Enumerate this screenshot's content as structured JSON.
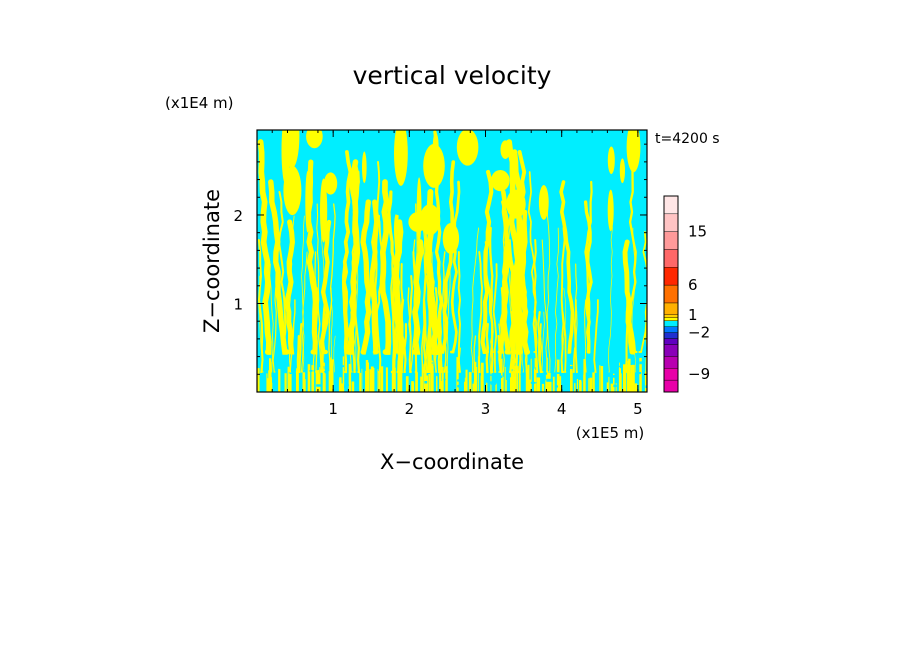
{
  "chart_data": {
    "type": "heatmap",
    "title": "vertical velocity",
    "xlabel": "X−coordinate",
    "ylabel": "Z−coordinate",
    "x_unit": "(x1E5 m)",
    "y_unit": "(x1E4 m)",
    "time_label": "t=4200 s",
    "xlim": [
      0,
      5.12
    ],
    "ylim": [
      0,
      2.96
    ],
    "x_ticks": [
      1,
      2,
      3,
      4,
      5
    ],
    "x_tick_labels": [
      "1",
      "2",
      "3",
      "4",
      "5"
    ],
    "y_ticks": [
      1,
      2
    ],
    "y_tick_labels": [
      "1",
      "2"
    ],
    "field_colors": {
      "upward": "#ffff00",
      "downward": "#00eeff"
    },
    "colorbar": {
      "labels": [
        {
          "value": 15,
          "text": "15"
        },
        {
          "value": 6,
          "text": "6"
        },
        {
          "value": 1,
          "text": "1"
        },
        {
          "value": -2,
          "text": "−2"
        },
        {
          "value": -9,
          "text": "−9"
        }
      ],
      "levels": [
        {
          "value": -12,
          "color": "#e800a8"
        },
        {
          "value": -10,
          "color": "#e800a8"
        },
        {
          "value": -8,
          "color": "#b800b0"
        },
        {
          "value": -6,
          "color": "#8a00b8"
        },
        {
          "value": -4,
          "color": "#6000c0"
        },
        {
          "value": -3,
          "color": "#2030d0"
        },
        {
          "value": -2,
          "color": "#0078ff"
        },
        {
          "value": -1,
          "color": "#00eeff"
        },
        {
          "value": 0,
          "color": "#ffff00"
        },
        {
          "value": 0.5,
          "color": "#ffd000"
        },
        {
          "value": 1,
          "color": "#ffb000"
        },
        {
          "value": 3,
          "color": "#ff7000"
        },
        {
          "value": 6,
          "color": "#ff2800"
        },
        {
          "value": 9,
          "color": "#ff6868"
        },
        {
          "value": 12,
          "color": "#ff9a9a"
        },
        {
          "value": 15,
          "color": "#ffc4c4"
        },
        {
          "value": 18,
          "color": "#ffe6e6"
        }
      ]
    }
  }
}
